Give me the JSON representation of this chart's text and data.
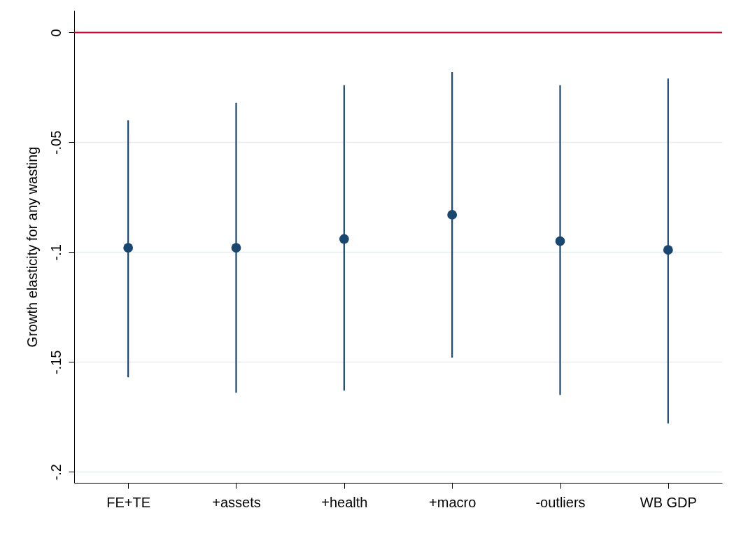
{
  "chart_data": {
    "type": "scatter",
    "ylabel": "Growth elasticity for any wasting",
    "categories": [
      "FE+TE",
      "+assets",
      "+health",
      "+macro",
      "-outliers",
      "WB GDP"
    ],
    "series": [
      {
        "color": "#1a476f",
        "values": [
          -0.098,
          -0.098,
          -0.094,
          -0.083,
          -0.095,
          -0.099
        ],
        "errors": [
          [
            -0.157,
            -0.04
          ],
          [
            -0.164,
            -0.032
          ],
          [
            -0.163,
            -0.024
          ],
          [
            -0.148,
            -0.018
          ],
          [
            -0.165,
            -0.024
          ],
          [
            -0.178,
            -0.021
          ]
        ]
      }
    ],
    "ylim": [
      -0.205,
      0.01
    ],
    "yticks": [
      {
        "value": -0.2,
        "label": "-.2"
      },
      {
        "value": -0.15,
        "label": "-.15"
      },
      {
        "value": -0.1,
        "label": "-.1"
      },
      {
        "value": -0.05,
        "label": "-.05"
      },
      0
    ],
    "grid": "y",
    "marker": "circle",
    "ref_lines": [
      {
        "axis": "y",
        "value": 0,
        "color": "#c10534"
      }
    ]
  }
}
